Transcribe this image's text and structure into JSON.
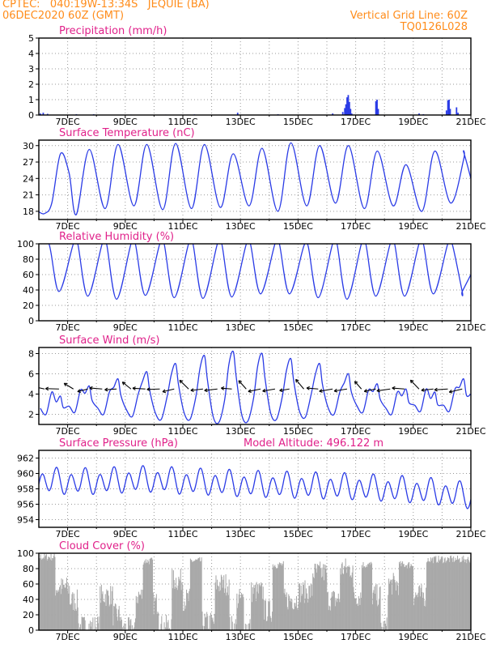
{
  "header": {
    "line1_left": "CPTEC:   040:19W-13:34S   JEQUIE (BA)",
    "line2_left": "06DEC2020 60Z (GMT)",
    "line1_right": "Vertical Grid Line: 60Z",
    "line2_right": "TQ0126L028"
  },
  "colors": {
    "header": "#ff8c1a",
    "title": "#e0218a",
    "series": "#2a3be6",
    "cloud": "#a8a8a8",
    "arrow": "#000000",
    "grid": "#999999"
  },
  "x_axis": {
    "start_day": 6,
    "end_day": 21,
    "tick_labels": [
      "7DEC",
      "9DEC",
      "11DEC",
      "13DEC",
      "15DEC",
      "17DEC",
      "19DEC",
      "21DEC"
    ]
  },
  "chart_data": [
    {
      "id": "precip",
      "type": "bar",
      "title": "Precipitation (mm/h)",
      "ylim": [
        0,
        5
      ],
      "yticks": [
        0,
        1,
        2,
        3,
        4,
        5
      ],
      "grid": true,
      "events": [
        {
          "day": 6.05,
          "value": 0.1
        },
        {
          "day": 6.15,
          "value": 0.15
        },
        {
          "day": 6.3,
          "value": 0.08
        },
        {
          "day": 7.3,
          "value": 0.05
        },
        {
          "day": 7.9,
          "value": 0.05
        },
        {
          "day": 9.2,
          "value": 0.03
        },
        {
          "day": 10.4,
          "value": 0.03
        },
        {
          "day": 11.4,
          "value": 0.04
        },
        {
          "day": 12.9,
          "value": 0.15
        },
        {
          "day": 14.3,
          "value": 0.05
        },
        {
          "day": 16.2,
          "value": 0.1
        },
        {
          "day": 16.55,
          "value": 0.2
        },
        {
          "day": 16.62,
          "value": 0.45
        },
        {
          "day": 16.66,
          "value": 0.7
        },
        {
          "day": 16.7,
          "value": 1.15
        },
        {
          "day": 16.74,
          "value": 1.3
        },
        {
          "day": 16.78,
          "value": 0.85
        },
        {
          "day": 16.82,
          "value": 0.4
        },
        {
          "day": 16.86,
          "value": 0.1
        },
        {
          "day": 17.7,
          "value": 0.9
        },
        {
          "day": 17.74,
          "value": 1.0
        },
        {
          "day": 17.78,
          "value": 0.4
        },
        {
          "day": 19.2,
          "value": 0.1
        },
        {
          "day": 19.35,
          "value": 0.05
        },
        {
          "day": 20.15,
          "value": 0.3
        },
        {
          "day": 20.2,
          "value": 0.95
        },
        {
          "day": 20.24,
          "value": 1.0
        },
        {
          "day": 20.28,
          "value": 0.4
        },
        {
          "day": 20.5,
          "value": 0.5
        },
        {
          "day": 20.55,
          "value": 0.15
        }
      ]
    },
    {
      "id": "temp",
      "type": "line",
      "title": "Surface Temperature (nC)",
      "ylim": [
        16.5,
        31
      ],
      "yticks": [
        18,
        21,
        24,
        27,
        30
      ],
      "grid": true,
      "daily_max": [
        24.5,
        28.5,
        29.3,
        30.2,
        30.2,
        30.4,
        30.2,
        28.5,
        29.5,
        30.5,
        30.0,
        30.0,
        29.0,
        26.5,
        29.0,
        27.5,
        28.5,
        29.0,
        28.5,
        28.8,
        28.8
      ],
      "daily_min": [
        17.8,
        17.5,
        18.5,
        19.0,
        18.3,
        18.5,
        18.7,
        19.0,
        18.0,
        19.0,
        19.5,
        18.5,
        19.0,
        18.0,
        19.5,
        18.5,
        19.0,
        18.5,
        18.0,
        18.5
      ],
      "end_value": 24.0
    },
    {
      "id": "rh",
      "type": "line",
      "title": "Relative Humidity (%)",
      "ylim": [
        0,
        100
      ],
      "yticks": [
        0,
        20,
        40,
        60,
        80,
        100
      ],
      "grid": true,
      "daily_min": [
        38,
        32,
        28,
        33,
        30,
        29,
        31,
        35,
        35,
        30,
        28,
        32,
        32,
        35,
        38,
        37,
        30,
        33,
        33,
        35,
        38
      ],
      "night_max": [
        100,
        100,
        100,
        100,
        100,
        100,
        100,
        99,
        100,
        97,
        100,
        100,
        100,
        100,
        100,
        70,
        96,
        100,
        100,
        100,
        100
      ],
      "start_value": 100,
      "end_value": 60
    },
    {
      "id": "wind",
      "type": "line",
      "title": "Surface Wind (m/s)",
      "ylim": [
        1,
        8.6
      ],
      "yticks": [
        2,
        4,
        6,
        8
      ],
      "grid": true,
      "speed_day": [
        2.5,
        3.8,
        4.8,
        5.5,
        6.2,
        7.0,
        7.8,
        8.2,
        8.0,
        7.5,
        7.0,
        6.0,
        5.0,
        4.5,
        4.2,
        5.5,
        5.0,
        6.0
      ],
      "speed_night": [
        2.0,
        2.2,
        2.0,
        1.8,
        1.5,
        1.5,
        1.2,
        1.3,
        1.5,
        1.7,
        2.0,
        2.2,
        2.0,
        2.3,
        2.3,
        2.0,
        2.0,
        2.2
      ],
      "arrow_level": 4.5
    },
    {
      "id": "press",
      "type": "line",
      "title": "Surface Pressure (hPa)",
      "subtitle": "Model Altitude: 496.122 m",
      "ylim": [
        953,
        963
      ],
      "yticks": [
        954,
        956,
        958,
        960,
        962
      ],
      "grid": true,
      "baseline": [
        959.0,
        958.9,
        958.9,
        959.1,
        959.2,
        958.9,
        958.8,
        958.6,
        958.5,
        958.4,
        958.3,
        958.2,
        958.0,
        957.8,
        957.5,
        957.0,
        956.3,
        955.8,
        955.5,
        955.2,
        955.2
      ]
    },
    {
      "id": "cloud",
      "type": "bar",
      "title": "Cloud Cover (%)",
      "ylim": [
        0,
        100
      ],
      "yticks": [
        0,
        20,
        40,
        60,
        80,
        100
      ],
      "grid": true,
      "bands": [
        {
          "from": 6.0,
          "to": 6.55,
          "level": 95
        },
        {
          "from": 6.55,
          "to": 7.05,
          "level": 55
        },
        {
          "from": 7.05,
          "to": 7.35,
          "level": 38
        },
        {
          "from": 7.35,
          "to": 8.1,
          "level": 5
        },
        {
          "from": 8.1,
          "to": 8.55,
          "level": 45
        },
        {
          "from": 8.55,
          "to": 8.85,
          "level": 20
        },
        {
          "from": 8.85,
          "to": 9.35,
          "level": 2
        },
        {
          "from": 9.35,
          "to": 9.6,
          "level": 45
        },
        {
          "from": 9.6,
          "to": 9.95,
          "level": 90
        },
        {
          "from": 9.95,
          "to": 10.15,
          "level": 35
        },
        {
          "from": 10.15,
          "to": 10.6,
          "level": 5
        },
        {
          "from": 10.6,
          "to": 11.0,
          "level": 65
        },
        {
          "from": 11.0,
          "to": 11.25,
          "level": 40
        },
        {
          "from": 11.25,
          "to": 11.65,
          "level": 90
        },
        {
          "from": 11.65,
          "to": 12.1,
          "level": 10
        },
        {
          "from": 12.1,
          "to": 12.6,
          "level": 60
        },
        {
          "from": 12.6,
          "to": 12.85,
          "level": 5
        },
        {
          "from": 12.85,
          "to": 13.1,
          "level": 40
        },
        {
          "from": 13.1,
          "to": 13.35,
          "level": 5
        },
        {
          "from": 13.35,
          "to": 13.8,
          "level": 50
        },
        {
          "from": 13.8,
          "to": 14.1,
          "level": 25
        },
        {
          "from": 14.1,
          "to": 14.5,
          "level": 85
        },
        {
          "from": 14.5,
          "to": 15.0,
          "level": 40
        },
        {
          "from": 15.0,
          "to": 15.5,
          "level": 50
        },
        {
          "from": 15.5,
          "to": 16.0,
          "level": 75
        },
        {
          "from": 16.0,
          "to": 16.45,
          "level": 40
        },
        {
          "from": 16.45,
          "to": 16.9,
          "level": 80
        },
        {
          "from": 16.9,
          "to": 17.2,
          "level": 45
        },
        {
          "from": 17.2,
          "to": 17.55,
          "level": 85
        },
        {
          "from": 17.55,
          "to": 17.85,
          "level": 45
        },
        {
          "from": 17.85,
          "to": 18.1,
          "level": 3
        },
        {
          "from": 18.1,
          "to": 18.5,
          "level": 60
        },
        {
          "from": 18.5,
          "to": 19.0,
          "level": 85
        },
        {
          "from": 19.0,
          "to": 19.45,
          "level": 45
        },
        {
          "from": 19.45,
          "to": 21.0,
          "level": 92
        }
      ]
    }
  ]
}
